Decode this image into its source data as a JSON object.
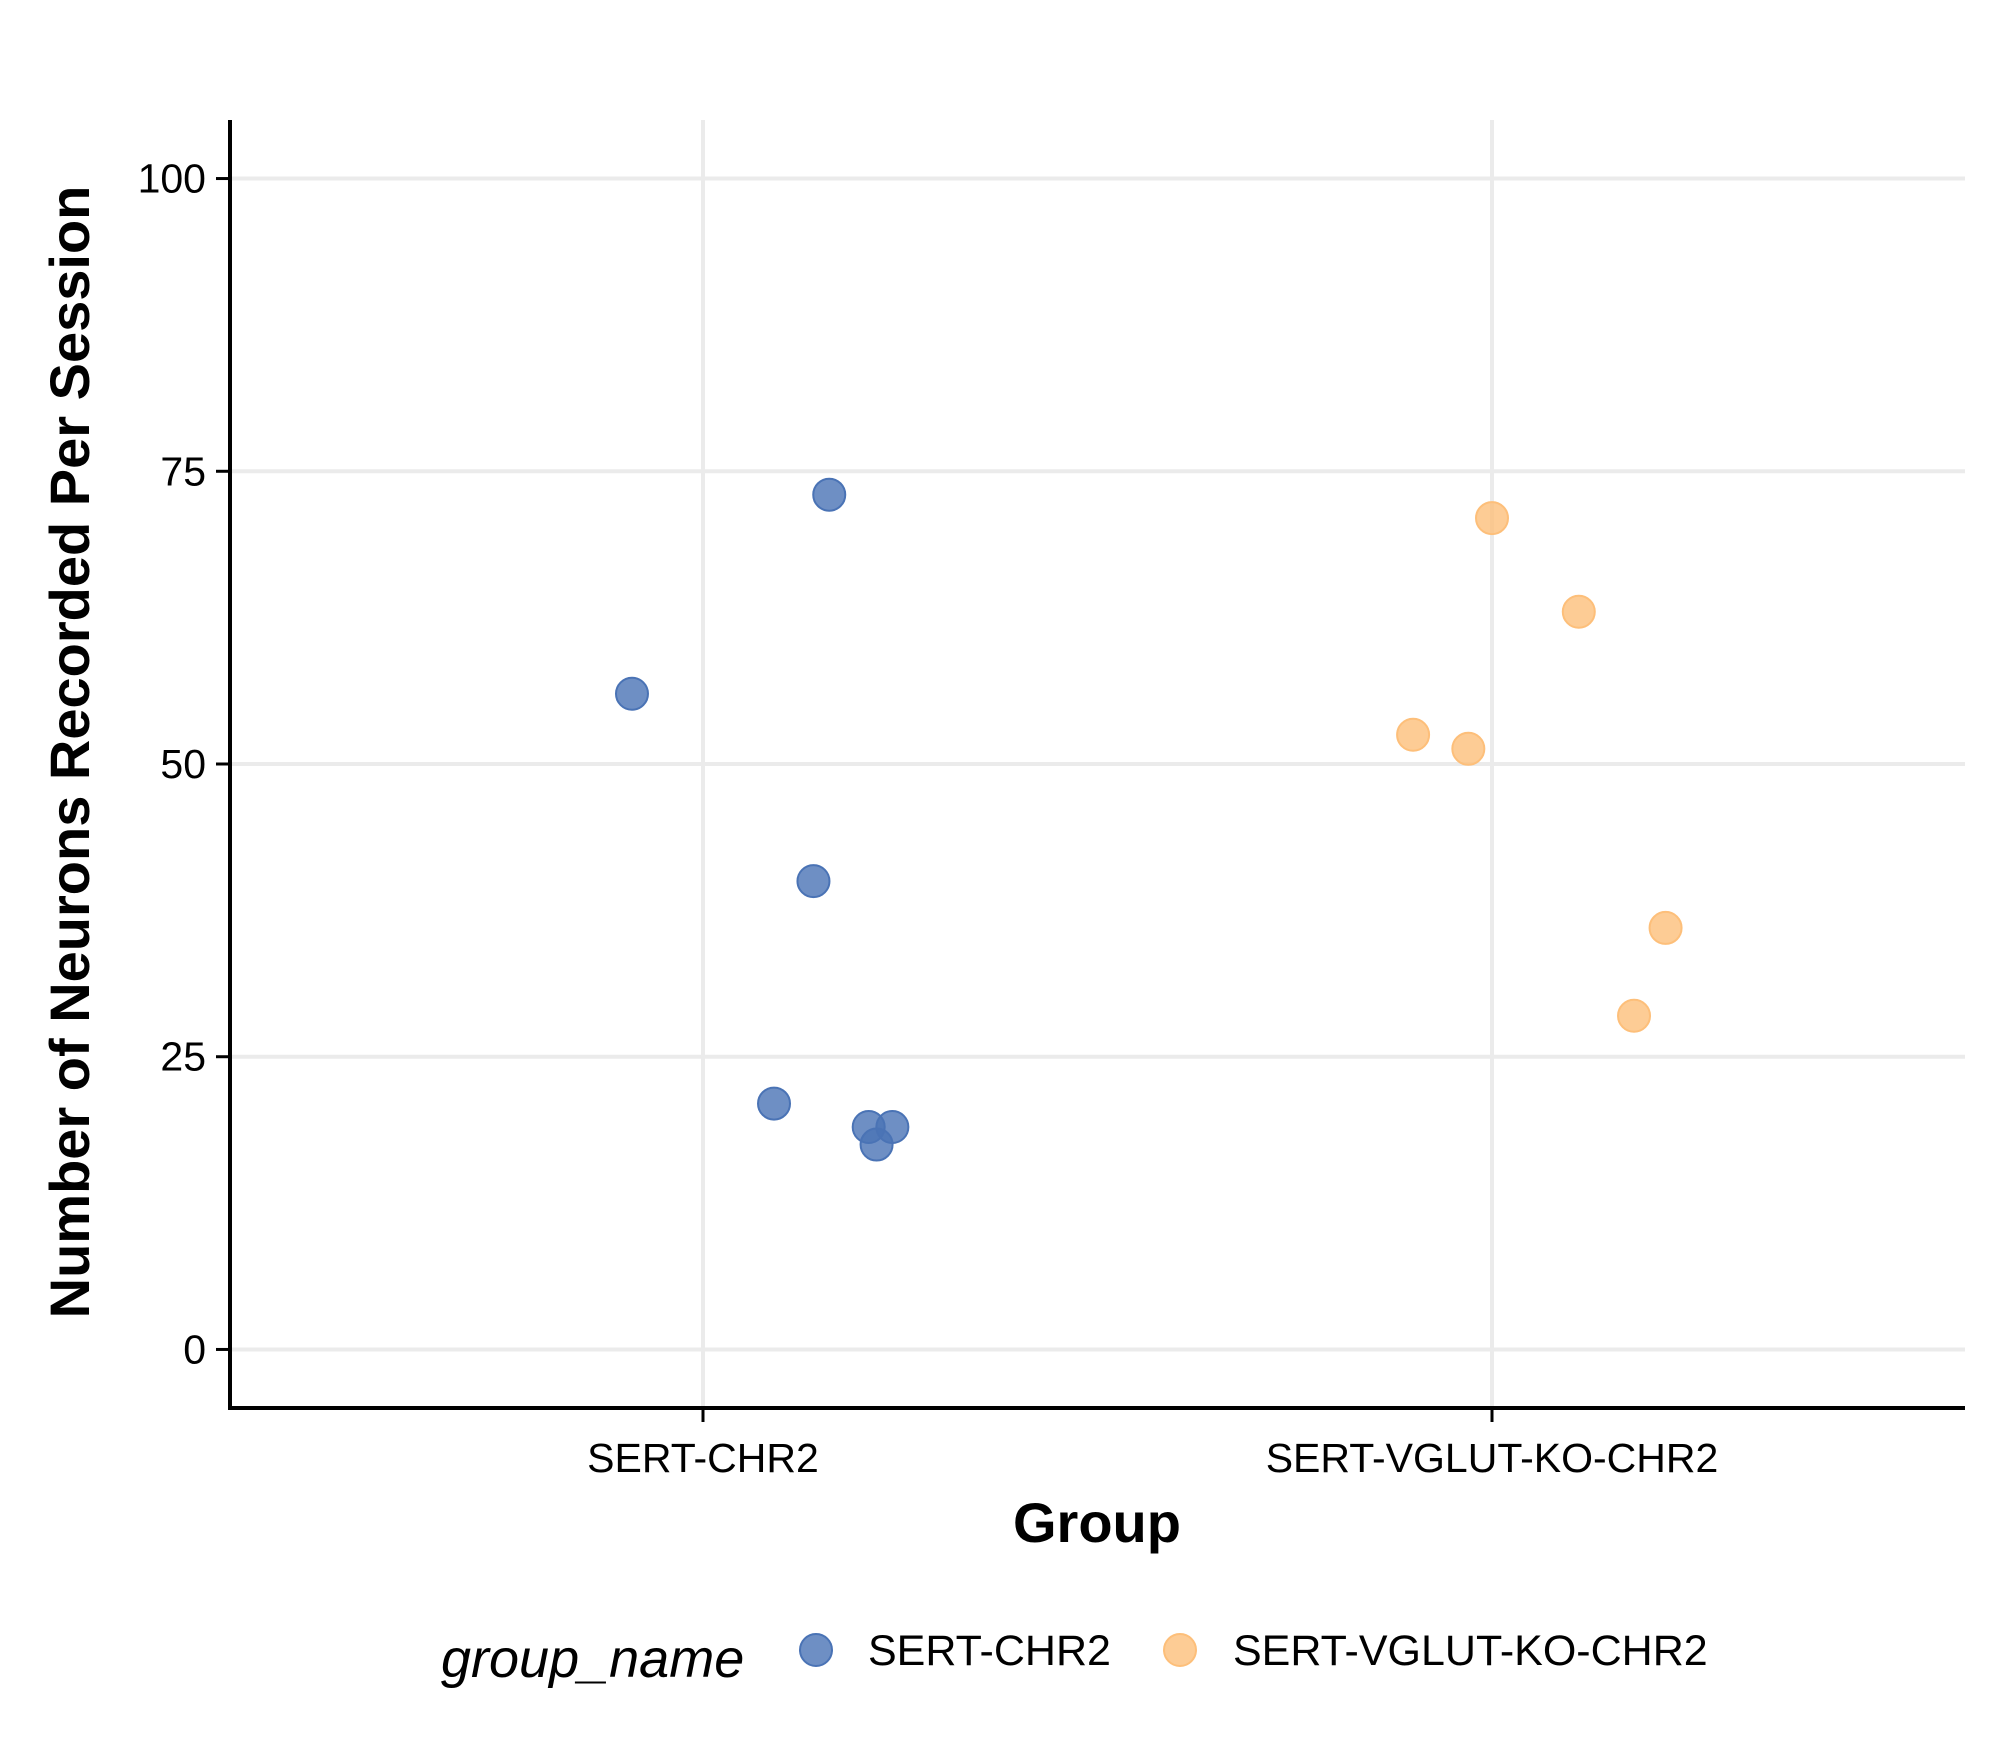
{
  "chart_data": {
    "type": "scatter",
    "xlabel": "Group",
    "ylabel": "Number of Neurons Recorded Per Session",
    "categories": [
      "SERT-CHR2",
      "SERT-VGLUT-KO-CHR2"
    ],
    "ylim": [
      -5,
      105
    ],
    "yticks": [
      0,
      25,
      50,
      75,
      100
    ],
    "grid": true,
    "legend": {
      "title": "group_name",
      "position": "bottom"
    },
    "series": [
      {
        "name": "SERT-CHR2",
        "color": "#4A73B5",
        "points": [
          {
            "x": "SERT-CHR2",
            "jitter": 0.16,
            "y": 73
          },
          {
            "x": "SERT-CHR2",
            "jitter": -0.09,
            "y": 56
          },
          {
            "x": "SERT-CHR2",
            "jitter": 0.14,
            "y": 40
          },
          {
            "x": "SERT-CHR2",
            "jitter": 0.09,
            "y": 21
          },
          {
            "x": "SERT-CHR2",
            "jitter": 0.21,
            "y": 19
          },
          {
            "x": "SERT-CHR2",
            "jitter": 0.24,
            "y": 19
          },
          {
            "x": "SERT-CHR2",
            "jitter": 0.22,
            "y": 17.5
          }
        ]
      },
      {
        "name": "SERT-VGLUT-KO-CHR2",
        "color": "#FDBF7A",
        "points": [
          {
            "x": "SERT-VGLUT-KO-CHR2",
            "jitter": 0.0,
            "y": 71
          },
          {
            "x": "SERT-VGLUT-KO-CHR2",
            "jitter": 0.11,
            "y": 63
          },
          {
            "x": "SERT-VGLUT-KO-CHR2",
            "jitter": -0.1,
            "y": 52.5
          },
          {
            "x": "SERT-VGLUT-KO-CHR2",
            "jitter": -0.03,
            "y": 51.3
          },
          {
            "x": "SERT-VGLUT-KO-CHR2",
            "jitter": 0.22,
            "y": 36
          },
          {
            "x": "SERT-VGLUT-KO-CHR2",
            "jitter": 0.18,
            "y": 28.5
          }
        ]
      }
    ]
  }
}
